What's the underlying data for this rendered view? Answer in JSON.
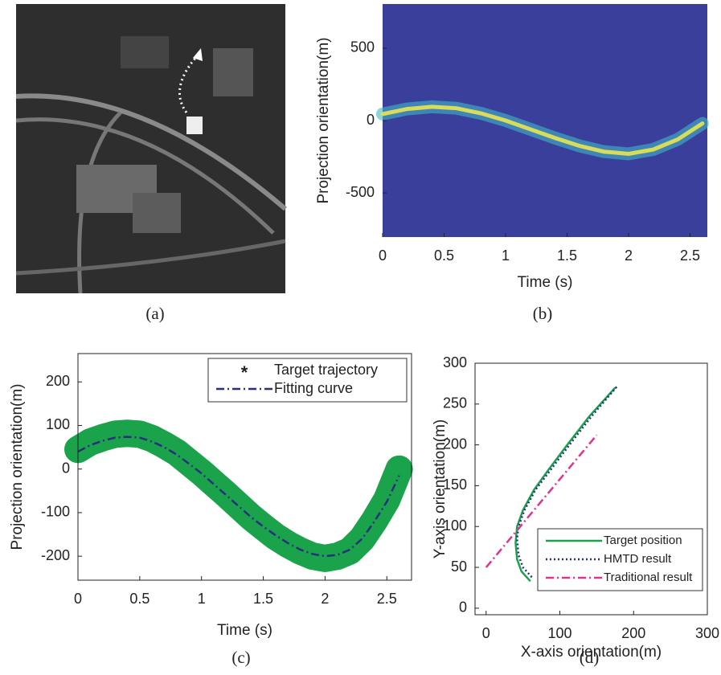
{
  "image": {
    "caption": "(a)"
  },
  "chart_data": [
    {
      "type": "heatmap",
      "caption": "(b)",
      "xlabel": "Time (s)",
      "ylabel": "Projection orientation(m)",
      "background": "#3b3f9c",
      "ridge_color": "#d8dc5a",
      "xlim": [
        0,
        2.64
      ],
      "ylim": [
        -805,
        805
      ],
      "xticks": [
        0,
        0.5,
        1,
        1.5,
        2,
        2.5
      ],
      "yticks": [
        -500,
        0,
        500
      ],
      "x": [
        0,
        0.2,
        0.4,
        0.6,
        0.8,
        1.0,
        1.2,
        1.4,
        1.6,
        1.8,
        2.0,
        2.2,
        2.4,
        2.6
      ],
      "values": [
        45,
        80,
        95,
        85,
        50,
        0,
        -60,
        -120,
        -175,
        -215,
        -230,
        -200,
        -130,
        -20
      ]
    },
    {
      "type": "line",
      "caption": "(c)",
      "xlabel": "Time (s)",
      "ylabel": "Projection orientation(m)",
      "xlim": [
        0,
        2.7
      ],
      "ylim": [
        -255,
        265
      ],
      "xticks": [
        0,
        0.5,
        1,
        1.5,
        2,
        2.5
      ],
      "yticks": [
        -200,
        -100,
        0,
        100,
        200
      ],
      "legend": "top-right",
      "series": [
        {
          "name": "Target trajectory",
          "color": "#1aa34a",
          "line_style": "band",
          "x": [
            0,
            0.1,
            0.2,
            0.3,
            0.4,
            0.5,
            0.6,
            0.7,
            0.8,
            0.9,
            1.0,
            1.1,
            1.2,
            1.3,
            1.4,
            1.5,
            1.6,
            1.7,
            1.8,
            1.9,
            2.0,
            2.1,
            2.2,
            2.3,
            2.4,
            2.5,
            2.6
          ],
          "values": [
            45,
            62,
            72,
            80,
            82,
            80,
            70,
            55,
            38,
            15,
            -8,
            -33,
            -58,
            -84,
            -110,
            -133,
            -155,
            -173,
            -188,
            -200,
            -205,
            -200,
            -188,
            -160,
            -118,
            -70,
            0
          ]
        },
        {
          "name": "Fitting curve",
          "color": "#27307f",
          "line_style": "dashdot",
          "x": [
            0,
            0.1,
            0.2,
            0.3,
            0.4,
            0.5,
            0.6,
            0.7,
            0.8,
            0.9,
            1.0,
            1.1,
            1.2,
            1.3,
            1.4,
            1.5,
            1.6,
            1.7,
            1.8,
            1.9,
            2.0,
            2.1,
            2.2,
            2.3,
            2.4,
            2.5,
            2.6
          ],
          "values": [
            40,
            55,
            65,
            72,
            74,
            72,
            63,
            50,
            33,
            12,
            -10,
            -35,
            -60,
            -85,
            -110,
            -132,
            -152,
            -170,
            -185,
            -195,
            -200,
            -197,
            -185,
            -160,
            -120,
            -75,
            -15
          ]
        }
      ]
    },
    {
      "type": "line",
      "caption": "(d)",
      "xlabel": "X-axis orientation(m)",
      "ylabel": "Y-axis orientation(m)",
      "xlim": [
        -15,
        300
      ],
      "ylim": [
        -8,
        300
      ],
      "xticks": [
        0,
        100,
        200,
        300
      ],
      "yticks": [
        0,
        50,
        100,
        150,
        200,
        250,
        300
      ],
      "legend": "bottom-right",
      "series": [
        {
          "name": "Target position",
          "color": "#1aa34a",
          "line_style": "solid",
          "x": [
            60,
            48,
            42,
            40,
            42,
            50,
            65,
            85,
            110,
            140,
            175
          ],
          "values": [
            33,
            45,
            60,
            80,
            100,
            120,
            145,
            170,
            200,
            235,
            270
          ]
        },
        {
          "name": "HMTD result",
          "color": "#27307f",
          "line_style": "dotted",
          "x": [
            62,
            50,
            44,
            42,
            44,
            52,
            67,
            88,
            113,
            143,
            178
          ],
          "values": [
            38,
            50,
            65,
            85,
            100,
            120,
            145,
            170,
            200,
            235,
            272
          ]
        },
        {
          "name": "Traditional result",
          "color": "#e0338f",
          "line_style": "dashdot",
          "x": [
            0,
            150
          ],
          "values": [
            50,
            212
          ]
        }
      ]
    }
  ]
}
